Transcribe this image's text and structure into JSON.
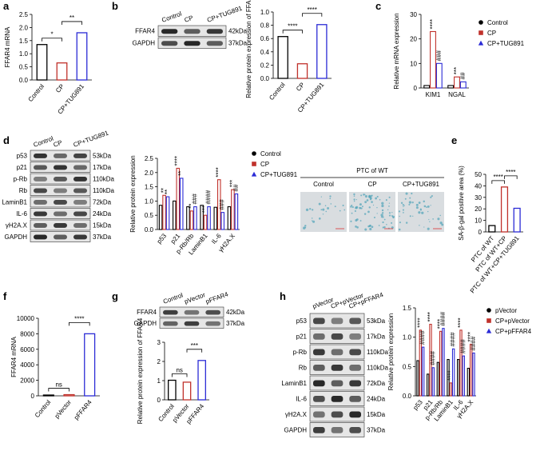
{
  "chart_data": [
    {
      "type": "bar",
      "panel": "a",
      "ylabel": "FFAR4 mRNA",
      "categories": [
        "Control",
        "CP",
        "CP+TUG891"
      ],
      "values": [
        1.35,
        0.65,
        1.8
      ],
      "colors": [
        "#000000",
        "#c0312b",
        "#2b2bd6"
      ],
      "ylim": [
        0,
        2.5
      ],
      "yticks": [
        {
          "value": 0,
          "label": "0.0"
        },
        0.5,
        {
          "value": 1,
          "label": "1.0"
        },
        1.5,
        {
          "value": 2,
          "label": "2.0"
        },
        2.5
      ],
      "comparisons": [
        {
          "pair": [
            0,
            1
          ],
          "label": "*"
        },
        {
          "pair": [
            1,
            2
          ],
          "label": "**"
        }
      ]
    },
    {
      "type": "bar",
      "panel": "b",
      "ylabel": "Relative protein expression of FFAR4",
      "categories": [
        "Control",
        "CP",
        "CP+TUG891"
      ],
      "values": [
        0.63,
        0.22,
        0.81
      ],
      "colors": [
        "#000000",
        "#c0312b",
        "#2b2bd6"
      ],
      "ylim": [
        0,
        1
      ],
      "yticks": [
        {
          "value": 0,
          "label": "0.0"
        },
        0.2,
        0.4,
        0.6,
        0.8,
        {
          "value": 1,
          "label": "1.0"
        }
      ],
      "comparisons": [
        {
          "pair": [
            0,
            1
          ],
          "label": "****"
        },
        {
          "pair": [
            1,
            2
          ],
          "label": "****"
        }
      ]
    },
    {
      "type": "grouped-bar",
      "panel": "c",
      "ylabel": "Relative mRNA expression",
      "categories": [
        "KIM1",
        "NGAL"
      ],
      "series": [
        {
          "name": "Control",
          "color": "#000000",
          "marker": "circle",
          "values": [
            1,
            1
          ]
        },
        {
          "name": "CP",
          "color": "#c0312b",
          "marker": "square",
          "values": [
            23,
            4.5
          ],
          "stars": [
            "****",
            "***"
          ]
        },
        {
          "name": "CP+TUG891",
          "color": "#2b2bd6",
          "marker": "triangle",
          "values": [
            10,
            2.5
          ],
          "stars": [
            "###",
            "##"
          ]
        }
      ],
      "ylim": [
        0,
        30
      ],
      "yticks": [
        0,
        10,
        20,
        30
      ]
    },
    {
      "type": "grouped-bar",
      "panel": "d",
      "ylabel": "Relative protein expression",
      "categories": [
        "p53",
        "p21",
        "p-Rb/Rb",
        "LaminB1",
        "IL-6",
        "γH2A.X"
      ],
      "series": [
        {
          "name": "Control",
          "color": "#000000",
          "marker": "circle",
          "values": [
            0.85,
            1.0,
            0.8,
            0.85,
            0.78,
            0.8
          ]
        },
        {
          "name": "CP",
          "color": "#c0312b",
          "marker": "square",
          "values": [
            1.2,
            2.15,
            0.65,
            0.5,
            1.75,
            1.4
          ],
          "stars": [
            "**",
            "****",
            "**",
            "***",
            "****",
            "***"
          ]
        },
        {
          "name": "CP+TUG891",
          "color": "#2b2bd6",
          "marker": "triangle",
          "values": [
            1.15,
            1.8,
            0.8,
            0.8,
            0.6,
            1.25
          ],
          "stars": [
            "**",
            "**",
            "###",
            "####",
            "###",
            "##"
          ]
        }
      ],
      "ylim": [
        0,
        2.5
      ],
      "yticks": [
        {
          "value": 0,
          "label": "0.0"
        },
        0.5,
        {
          "value": 1,
          "label": "1.0"
        },
        1.5,
        {
          "value": 2,
          "label": "2.0"
        },
        2.5
      ]
    },
    {
      "type": "bar",
      "panel": "e",
      "ylabel": "SA-β-gal positive area (%)",
      "categories": [
        "PTC of WT",
        "PTC of WT+CP",
        "PTC of WT+CP+TUG891"
      ],
      "values": [
        5.5,
        39,
        20.5
      ],
      "colors": [
        "#000000",
        "#c0312b",
        "#2b2bd6"
      ],
      "ylim": [
        0,
        50
      ],
      "yticks": [
        0,
        10,
        20,
        30,
        40,
        50
      ],
      "comparisons": [
        {
          "pair": [
            0,
            1
          ],
          "label": "****"
        },
        {
          "pair": [
            1,
            2
          ],
          "label": "****"
        }
      ]
    },
    {
      "type": "bar",
      "panel": "f",
      "ylabel": "FFAR4 mRNA",
      "categories": [
        "Control",
        "pVector",
        "pFFAR4"
      ],
      "values": [
        100,
        150,
        8000
      ],
      "colors": [
        "#000000",
        "#c0312b",
        "#2b2bd6"
      ],
      "ylim": [
        0,
        10000
      ],
      "yticks": [
        0,
        2000,
        4000,
        6000,
        8000,
        10000
      ],
      "comparisons": [
        {
          "pair": [
            0,
            1
          ],
          "label": "ns"
        },
        {
          "pair": [
            1,
            2
          ],
          "label": "****"
        }
      ]
    },
    {
      "type": "bar",
      "panel": "g",
      "ylabel": "Relative protein expression of FFAR4",
      "categories": [
        "Control",
        "pVector",
        "pFFAR4"
      ],
      "values": [
        1.02,
        0.92,
        2.05
      ],
      "colors": [
        "#000000",
        "#c0312b",
        "#2b2bd6"
      ],
      "ylim": [
        0,
        3
      ],
      "yticks": [
        0,
        1,
        2,
        3
      ],
      "comparisons": [
        {
          "pair": [
            0,
            1
          ],
          "label": "ns"
        },
        {
          "pair": [
            1,
            2
          ],
          "label": "***"
        }
      ]
    },
    {
      "type": "grouped-bar",
      "panel": "h",
      "ylabel": "Relative protein expression",
      "categories": [
        "p53",
        "p21",
        "p-Rb/Rb",
        "LaminB1",
        "IL-6",
        "γH2A.X"
      ],
      "series": [
        {
          "name": "pVector",
          "color": "#000000",
          "marker": "circle",
          "values": [
            0.6,
            0.37,
            0.57,
            0.62,
            0.62,
            0.47
          ]
        },
        {
          "name": "CP+pVector",
          "color": "#c0312b",
          "marker": "square",
          "values": [
            1.12,
            1.22,
            1.1,
            0.22,
            1.12,
            0.88
          ],
          "stars": [
            "****",
            "****",
            "****",
            "****",
            "****",
            "****"
          ]
        },
        {
          "name": "CP+pFFAR4",
          "color": "#2b2bd6",
          "marker": "triangle",
          "values": [
            0.83,
            0.48,
            1.15,
            0.8,
            0.68,
            0.73
          ],
          "stars": [
            "####",
            "####",
            "####",
            "####",
            "####",
            "####"
          ]
        }
      ],
      "ylim": [
        0,
        1.5
      ],
      "yticks": [
        {
          "value": 0,
          "label": "0.0"
        },
        0.5,
        {
          "value": 1,
          "label": "1.0"
        },
        1.5
      ]
    }
  ],
  "blots": [
    {
      "headers": [
        "Control",
        "CP",
        "CP+TUG891"
      ],
      "rows": [
        {
          "name": "FFAR4",
          "size": "42kDa"
        },
        {
          "name": "GAPDH",
          "size": "37kDa"
        }
      ]
    },
    {
      "headers": [
        "Control",
        "CP",
        "CP+TUG891"
      ],
      "rows": [
        {
          "name": "p53",
          "size": "53kDa"
        },
        {
          "name": "p21",
          "size": "17kDa"
        },
        {
          "name": "p-Rb",
          "size": "110kDa"
        },
        {
          "name": "Rb",
          "size": "110kDa"
        },
        {
          "name": "LaminB1",
          "size": "72kDa"
        },
        {
          "name": "IL-6",
          "size": "24kDa"
        },
        {
          "name": "γH2A.X",
          "size": "15kDa"
        },
        {
          "name": "GAPDH",
          "size": "37kDa"
        }
      ]
    },
    {
      "headers": [
        "Control",
        "pVector",
        "pFFAR4"
      ],
      "rows": [
        {
          "name": "FFAR4",
          "size": "42kDa"
        },
        {
          "name": "GAPDH",
          "size": "37kDa"
        }
      ]
    },
    {
      "headers": [
        "pVector",
        "CP+pVector",
        "CP+pFFAR4"
      ],
      "rows": [
        {
          "name": "p53",
          "size": "53kDa"
        },
        {
          "name": "p21",
          "size": "17kDa"
        },
        {
          "name": "p-Rb",
          "size": "110kDa"
        },
        {
          "name": "Rb",
          "size": "110kDa"
        },
        {
          "name": "LaminB1",
          "size": "72kDa"
        },
        {
          "name": "IL-6",
          "size": "24kDa"
        },
        {
          "name": "γH2A.X",
          "size": "15kDa"
        },
        {
          "name": "GAPDH",
          "size": "37kDa"
        }
      ]
    }
  ],
  "images": {
    "title": "PTC of WT",
    "labels": [
      "Control",
      "CP",
      "CP+TUG891"
    ]
  }
}
